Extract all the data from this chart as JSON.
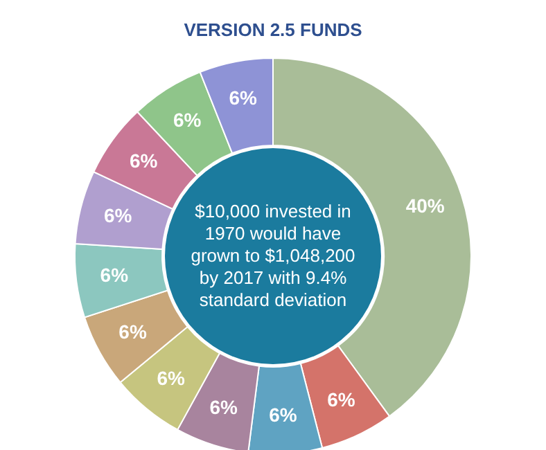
{
  "chart_data": {
    "type": "donut",
    "title": "VERSION 2.5 FUNDS",
    "categories": [
      null,
      null,
      null,
      null,
      null,
      null,
      null,
      null,
      null,
      null,
      null
    ],
    "values": [
      40,
      6,
      6,
      6,
      6,
      6,
      6,
      6,
      6,
      6,
      6
    ],
    "colors": [
      "#a9bd98",
      "#d4736a",
      "#5fa3c2",
      "#a8849e",
      "#c6c57f",
      "#c9a77a",
      "#8cc7bf",
      "#b09fcf",
      "#c97896",
      "#8fc58a",
      "#8e93d6"
    ],
    "value_labels": [
      "40%",
      "6%",
      "6%",
      "6%",
      "6%",
      "6%",
      "6%",
      "6%",
      "6%",
      "6%",
      "6%"
    ],
    "annotations": [
      "$10,000 invested in 1970 would have grown to $1,048,200 by 2017 with 9.4% standard deviation"
    ]
  }
}
